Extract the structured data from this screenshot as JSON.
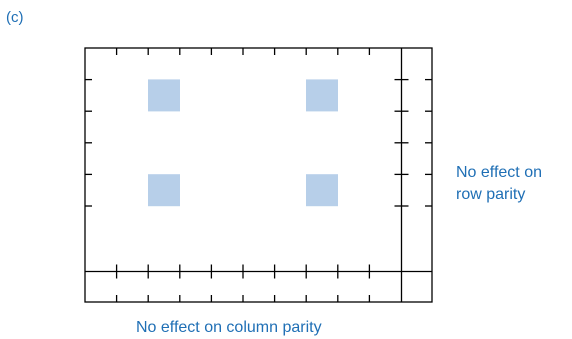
{
  "panel_label": "(c)",
  "row_caption": {
    "line1": "No effect on",
    "line2": "row parity"
  },
  "column_caption": "No effect on column parity",
  "colors": {
    "grid": "#000000",
    "highlight": "#b7cfe9",
    "caption": "#1f6fb5"
  },
  "grid": {
    "data_rows": 6,
    "data_cols": 10
  },
  "highlighted_cells": [
    {
      "row": 1,
      "col": 2
    },
    {
      "row": 1,
      "col": 7
    },
    {
      "row": 4,
      "col": 2
    },
    {
      "row": 4,
      "col": 7
    }
  ]
}
